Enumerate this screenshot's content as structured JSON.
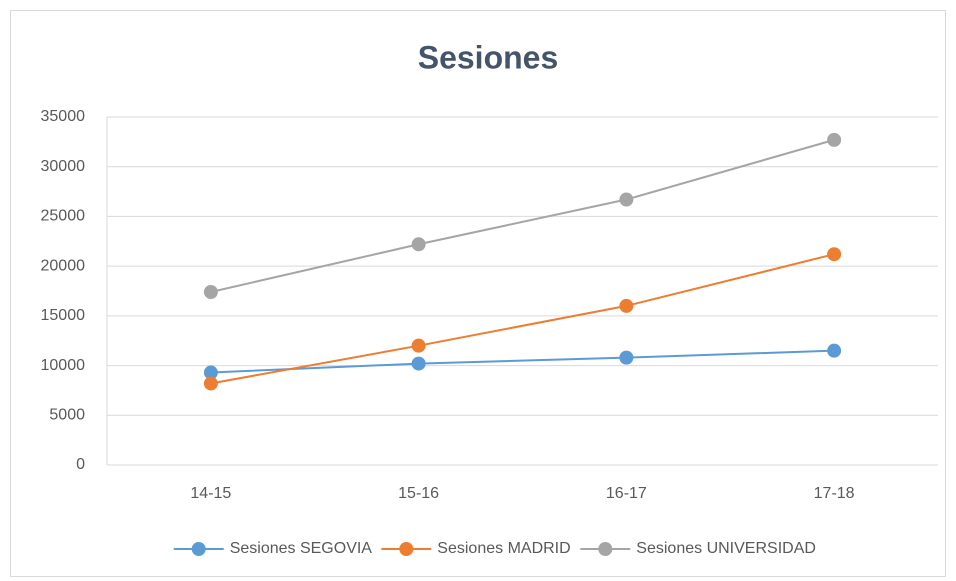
{
  "chart_data": {
    "type": "line",
    "title": "Sesiones",
    "categories": [
      "14-15",
      "15-16",
      "16-17",
      "17-18"
    ],
    "series": [
      {
        "name": "Sesiones SEGOVIA",
        "color": "#5b9bd5",
        "values": [
          9300,
          10200,
          10800,
          11500
        ]
      },
      {
        "name": "Sesiones MADRID",
        "color": "#ed7d31",
        "values": [
          8200,
          12000,
          16000,
          21200
        ]
      },
      {
        "name": "Sesiones UNIVERSIDAD",
        "color": "#a5a5a5",
        "values": [
          17400,
          22200,
          26700,
          32700
        ]
      }
    ],
    "ylim": [
      0,
      35000
    ],
    "yticks": [
      0,
      5000,
      10000,
      15000,
      20000,
      25000,
      30000,
      35000
    ],
    "grid": true,
    "legend": "bottom"
  }
}
